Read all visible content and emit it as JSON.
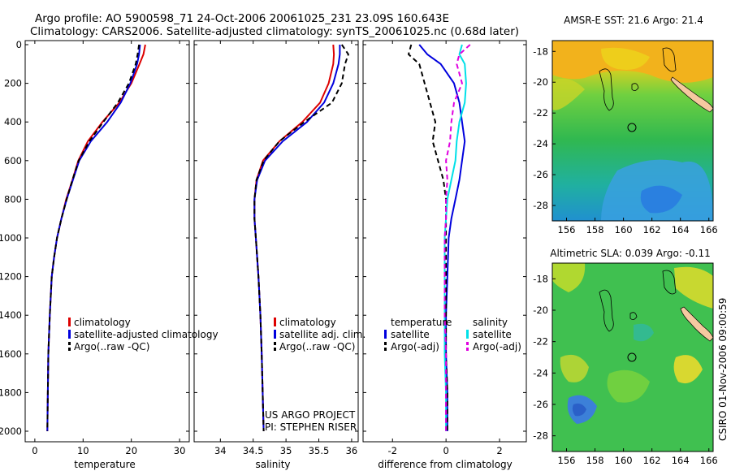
{
  "title": {
    "line1": "Argo profile: AO 5900598_71 24-Oct-2006 20061025_231 23.09S 160.643E",
    "line2": "Climatology: CARS2006. Satellite-adjusted climatology: synTS_20061025.nc (0.68d later)"
  },
  "credit": {
    "project": "US ARGO PROJECT",
    "pi": "PI: STEPHEN RISER",
    "stamp": "CSIRO 01-Nov-2006 09:00:59"
  },
  "colors": {
    "red": "#dd0000",
    "blue": "#0000dd",
    "black": "#000000",
    "cyan": "#00e0e8",
    "magenta": "#e000e0"
  },
  "chart_data": [
    {
      "type": "line",
      "name": "temperature",
      "xlabel": "temperature",
      "ylabel": "",
      "xlim": [
        -2,
        32
      ],
      "ylim": [
        2050,
        0
      ],
      "xticks": [
        0,
        10,
        20,
        30
      ],
      "yticks": [
        0,
        200,
        400,
        600,
        800,
        1000,
        1200,
        1400,
        1600,
        1800,
        2000
      ],
      "series": [
        {
          "name": "climatology",
          "color": "red",
          "dash": false,
          "x": [
            22.9,
            22.5,
            21.7,
            20.0,
            17.5,
            14.0,
            11.0,
            9.0,
            7.8,
            6.5,
            5.5,
            4.6,
            4.0,
            3.5,
            3.1,
            2.8,
            2.6
          ],
          "y": [
            0,
            50,
            100,
            200,
            300,
            400,
            500,
            600,
            700,
            800,
            900,
            1000,
            1100,
            1200,
            1400,
            1600,
            2000
          ]
        },
        {
          "name": "satellite-adjusted climatology",
          "color": "blue",
          "dash": false,
          "x": [
            21.8,
            21.6,
            21.2,
            19.8,
            17.8,
            15.0,
            11.6,
            9.2,
            7.9,
            6.6,
            5.5,
            4.6,
            4.0,
            3.5,
            3.1,
            2.8,
            2.6
          ],
          "y": [
            0,
            50,
            100,
            200,
            300,
            400,
            500,
            600,
            700,
            800,
            900,
            1000,
            1100,
            1200,
            1400,
            1600,
            2000
          ]
        },
        {
          "name": "Argo(..raw -QC)",
          "color": "black",
          "dash": true,
          "x": [
            21.6,
            21.3,
            20.9,
            19.5,
            17.2,
            14.2,
            11.3,
            9.1,
            7.8,
            6.6,
            5.5,
            4.6,
            4.0,
            3.5,
            3.1,
            2.8,
            2.6
          ],
          "y": [
            0,
            50,
            100,
            200,
            300,
            400,
            500,
            600,
            700,
            800,
            900,
            1000,
            1100,
            1200,
            1400,
            1600,
            2000
          ]
        }
      ],
      "legend": [
        "climatology",
        "satellite-adjusted climatology",
        "Argo(..raw -QC)"
      ]
    },
    {
      "type": "line",
      "name": "salinity",
      "xlabel": "salinity",
      "ylabel": "",
      "xlim": [
        33.6,
        36.1
      ],
      "ylim": [
        2050,
        0
      ],
      "xticks": [
        34,
        34.5,
        35,
        35.5,
        36
      ],
      "yticks": [
        0,
        200,
        400,
        600,
        800,
        1000,
        1200,
        1400,
        1600,
        1800,
        2000
      ],
      "series": [
        {
          "name": "climatology",
          "color": "red",
          "dash": false,
          "x": [
            35.72,
            35.73,
            35.72,
            35.65,
            35.52,
            35.25,
            34.9,
            34.65,
            34.55,
            34.52,
            34.52,
            34.54,
            34.56,
            34.58,
            34.61,
            34.63,
            34.66
          ],
          "y": [
            0,
            50,
            100,
            200,
            300,
            400,
            500,
            600,
            700,
            800,
            900,
            1000,
            1100,
            1200,
            1400,
            1600,
            2000
          ]
        },
        {
          "name": "satellite adj. clim.",
          "color": "blue",
          "dash": false,
          "x": [
            35.82,
            35.82,
            35.8,
            35.72,
            35.58,
            35.32,
            34.95,
            34.68,
            34.56,
            34.52,
            34.52,
            34.54,
            34.56,
            34.58,
            34.61,
            34.63,
            34.66
          ],
          "y": [
            0,
            50,
            100,
            200,
            300,
            400,
            500,
            600,
            700,
            800,
            900,
            1000,
            1100,
            1200,
            1400,
            1600,
            2000
          ]
        },
        {
          "name": "Argo(..raw -QC)",
          "color": "black",
          "dash": true,
          "x": [
            35.85,
            35.95,
            35.9,
            35.85,
            35.7,
            35.28,
            34.9,
            34.66,
            34.55,
            34.52,
            34.52,
            34.54,
            34.56,
            34.58,
            34.61,
            34.63,
            34.66
          ],
          "y": [
            0,
            50,
            100,
            200,
            300,
            400,
            500,
            600,
            700,
            800,
            900,
            1000,
            1100,
            1200,
            1400,
            1600,
            2000
          ]
        }
      ],
      "legend": [
        "climatology",
        "satellite adj. clim.",
        "Argo(..raw -QC)"
      ]
    },
    {
      "type": "line",
      "name": "difference",
      "xlabel": "difference from climatology",
      "ylabel": "",
      "xlim": [
        -3.1,
        3.0
      ],
      "ylim": [
        2050,
        0
      ],
      "xticks": [
        -2,
        0,
        2
      ],
      "yticks": [
        0,
        200,
        400,
        600,
        800,
        1000,
        1200,
        1400,
        1600,
        1800,
        2000
      ],
      "series": [
        {
          "name": "temperature satellite",
          "color": "blue",
          "dash": false,
          "x": [
            -1.0,
            -0.7,
            -0.2,
            0.3,
            0.5,
            0.6,
            0.7,
            0.6,
            0.5,
            0.35,
            0.2,
            0.1,
            0.05,
            0.0,
            0.0,
            0.05,
            0.05
          ],
          "y": [
            0,
            50,
            100,
            200,
            300,
            400,
            500,
            600,
            700,
            800,
            900,
            1000,
            1200,
            1400,
            1600,
            1800,
            2000
          ]
        },
        {
          "name": "temperature Argo(-adj)",
          "color": "black",
          "dash": true,
          "x": [
            -1.3,
            -1.4,
            -1.0,
            -0.8,
            -0.6,
            -0.4,
            -0.5,
            -0.3,
            -0.1,
            0.0,
            0.0,
            0.0,
            0.0,
            0.0,
            0.0,
            0.05,
            0.05
          ],
          "y": [
            0,
            50,
            100,
            200,
            300,
            400,
            500,
            600,
            700,
            800,
            900,
            1000,
            1200,
            1400,
            1600,
            1800,
            2000
          ]
        },
        {
          "name": "salinity satellite",
          "color": "cyan",
          "dash": false,
          "x": [
            0.6,
            0.5,
            0.7,
            0.75,
            0.7,
            0.5,
            0.4,
            0.35,
            0.2,
            0.05,
            0.0,
            -0.05,
            -0.05,
            -0.05,
            -0.05,
            0.0,
            0.0
          ],
          "y": [
            0,
            50,
            100,
            200,
            300,
            400,
            500,
            600,
            700,
            800,
            900,
            1000,
            1200,
            1400,
            1600,
            1800,
            2000
          ]
        },
        {
          "name": "salinity Argo(-adj)",
          "color": "magenta",
          "dash": true,
          "x": [
            0.9,
            0.5,
            0.4,
            0.6,
            0.3,
            0.2,
            0.15,
            0.0,
            0.05,
            0.0,
            0.0,
            -0.05,
            -0.05,
            -0.05,
            0.0,
            0.0,
            0.0
          ],
          "y": [
            0,
            50,
            100,
            200,
            300,
            400,
            500,
            600,
            700,
            800,
            900,
            1000,
            1200,
            1400,
            1600,
            1800,
            2000
          ]
        }
      ],
      "legend_headers": [
        "temperature",
        "salinity"
      ],
      "legend": [
        "satellite",
        "Argo(-adj)",
        "satellite",
        "Argo(-adj)"
      ]
    }
  ],
  "maps": [
    {
      "title": "AMSR-E SST: 21.6 Argo: 21.4",
      "xticks": [
        "156",
        "158",
        "160",
        "162",
        "164",
        "166"
      ],
      "yticks": [
        "-18",
        "-20",
        "-22",
        "-24",
        "-26",
        "-28"
      ]
    },
    {
      "title": "Altimetric SLA: 0.039 Argo: -0.11",
      "xticks": [
        "156",
        "158",
        "160",
        "162",
        "164",
        "166"
      ],
      "yticks": [
        "-18",
        "-20",
        "-22",
        "-24",
        "-26",
        "-28"
      ]
    }
  ]
}
